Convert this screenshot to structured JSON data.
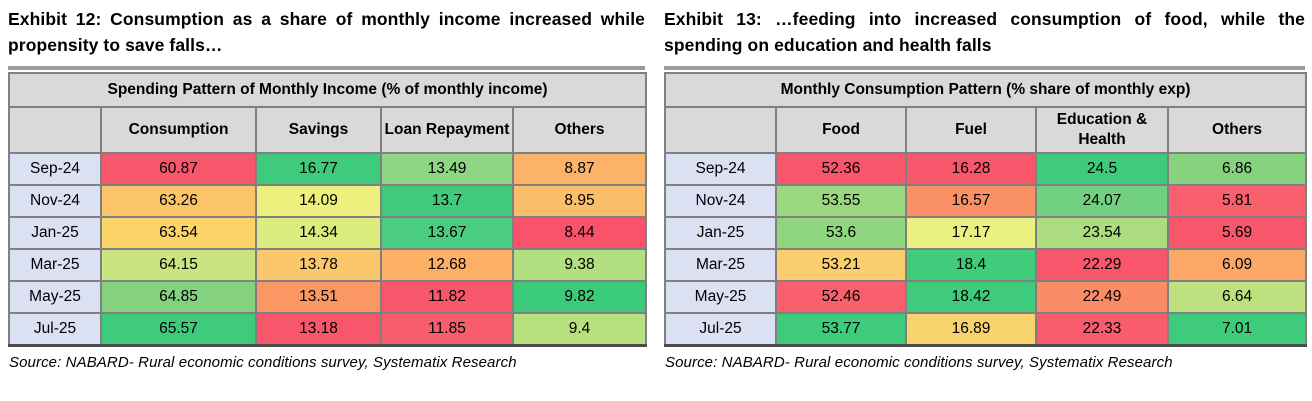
{
  "palette": {
    "header_fill": "#d9d9d9",
    "row_label_fill": "#dce0f3",
    "grid_border": "#808080",
    "top_band": "#9c9c9c",
    "heat_scale": {
      "low": "#f8566b",
      "mid": "#f5f47e",
      "high": "#3ecb7b"
    }
  },
  "exhibits": [
    {
      "title": "Exhibit 12: Consumption as a share of monthly income increased while propensity to save falls…",
      "table_title": "Spending Pattern of Monthly Income (% of monthly income)",
      "columns": [
        "",
        "Consumption",
        "Savings",
        "Loan Repayment",
        "Others"
      ],
      "rows": [
        {
          "label": "Sep-24",
          "cells": [
            {
              "v": "60.87",
              "c": "#f8566b"
            },
            {
              "v": "16.77",
              "c": "#3ecb7b"
            },
            {
              "v": "13.49",
              "c": "#8ed584"
            },
            {
              "v": "8.87",
              "c": "#fbb269"
            }
          ]
        },
        {
          "label": "Nov-24",
          "cells": [
            {
              "v": "63.26",
              "c": "#fbc468"
            },
            {
              "v": "14.09",
              "c": "#eef07e"
            },
            {
              "v": "13.7",
              "c": "#41c97c"
            },
            {
              "v": "8.95",
              "c": "#fbbf6b"
            }
          ]
        },
        {
          "label": "Jan-25",
          "cells": [
            {
              "v": "63.54",
              "c": "#fbd468"
            },
            {
              "v": "14.34",
              "c": "#dcec7e"
            },
            {
              "v": "13.67",
              "c": "#4acd7e"
            },
            {
              "v": "8.44",
              "c": "#f8536a"
            }
          ]
        },
        {
          "label": "Mar-25",
          "cells": [
            {
              "v": "64.15",
              "c": "#c9e481"
            },
            {
              "v": "13.78",
              "c": "#fbc76d"
            },
            {
              "v": "12.68",
              "c": "#fbb066"
            },
            {
              "v": "9.38",
              "c": "#b2df7f"
            }
          ]
        },
        {
          "label": "May-25",
          "cells": [
            {
              "v": "64.85",
              "c": "#84d280"
            },
            {
              "v": "13.51",
              "c": "#fa9763"
            },
            {
              "v": "11.82",
              "c": "#f8566b"
            },
            {
              "v": "9.82",
              "c": "#3bca79"
            }
          ]
        },
        {
          "label": "Jul-25",
          "cells": [
            {
              "v": "65.57",
              "c": "#3ecb7b"
            },
            {
              "v": "13.18",
              "c": "#f8566b"
            },
            {
              "v": "11.85",
              "c": "#f85d6e"
            },
            {
              "v": "9.4",
              "c": "#b8e07e"
            }
          ]
        }
      ],
      "source": "Source: NABARD- Rural economic conditions survey, Systematix Research"
    },
    {
      "title": "Exhibit 13: …feeding into increased consumption of food, while the spending on education and health falls",
      "table_title": "Monthly Consumption Pattern (% share of monthly exp)",
      "columns": [
        "",
        "Food",
        "Fuel",
        "Education & Health",
        "Others"
      ],
      "rows": [
        {
          "label": "Sep-24",
          "cells": [
            {
              "v": "52.36",
              "c": "#f8566b"
            },
            {
              "v": "16.28",
              "c": "#f8566b"
            },
            {
              "v": "24.5",
              "c": "#3ecb7b"
            },
            {
              "v": "6.86",
              "c": "#86d27f"
            }
          ]
        },
        {
          "label": "Nov-24",
          "cells": [
            {
              "v": "53.55",
              "c": "#9ad77f"
            },
            {
              "v": "16.57",
              "c": "#fa9165"
            },
            {
              "v": "24.07",
              "c": "#72d181"
            },
            {
              "v": "5.81",
              "c": "#f95f6d"
            }
          ]
        },
        {
          "label": "Jan-25",
          "cells": [
            {
              "v": "53.6",
              "c": "#90d580"
            },
            {
              "v": "17.17",
              "c": "#ebf180"
            },
            {
              "v": "23.54",
              "c": "#abdd80"
            },
            {
              "v": "5.69",
              "c": "#f8566b"
            }
          ]
        },
        {
          "label": "Mar-25",
          "cells": [
            {
              "v": "53.21",
              "c": "#fbce6e"
            },
            {
              "v": "18.4",
              "c": "#41cc7c"
            },
            {
              "v": "22.29",
              "c": "#f8566b"
            },
            {
              "v": "6.09",
              "c": "#fba767"
            }
          ]
        },
        {
          "label": "May-25",
          "cells": [
            {
              "v": "52.46",
              "c": "#f95f6d"
            },
            {
              "v": "18.42",
              "c": "#3ecb7b"
            },
            {
              "v": "22.49",
              "c": "#fa8c66"
            },
            {
              "v": "6.64",
              "c": "#bde17f"
            }
          ]
        },
        {
          "label": "Jul-25",
          "cells": [
            {
              "v": "53.77",
              "c": "#3ecb7b"
            },
            {
              "v": "16.89",
              "c": "#f9d36e"
            },
            {
              "v": "22.33",
              "c": "#f95c6c"
            },
            {
              "v": "7.01",
              "c": "#3ecb7b"
            }
          ]
        }
      ],
      "source": "Source: NABARD- Rural economic conditions survey, Systematix Research"
    }
  ],
  "chart_data": [
    {
      "type": "heatmap",
      "title": "Spending Pattern of Monthly Income (% of monthly income)",
      "categories": [
        "Sep-24",
        "Nov-24",
        "Jan-25",
        "Mar-25",
        "May-25",
        "Jul-25"
      ],
      "series": [
        {
          "name": "Consumption",
          "values": [
            60.87,
            63.26,
            63.54,
            64.15,
            64.85,
            65.57
          ]
        },
        {
          "name": "Savings",
          "values": [
            16.77,
            14.09,
            14.34,
            13.78,
            13.51,
            13.18
          ]
        },
        {
          "name": "Loan Repayment",
          "values": [
            13.49,
            13.7,
            13.67,
            12.68,
            11.82,
            11.85
          ]
        },
        {
          "name": "Others",
          "values": [
            8.87,
            8.95,
            8.44,
            9.38,
            9.82,
            9.4
          ]
        }
      ],
      "legend_position": "none",
      "color_scale": "red-yellow-green per column (low to high)"
    },
    {
      "type": "heatmap",
      "title": "Monthly Consumption Pattern (% share of monthly exp)",
      "categories": [
        "Sep-24",
        "Nov-24",
        "Jan-25",
        "Mar-25",
        "May-25",
        "Jul-25"
      ],
      "series": [
        {
          "name": "Food",
          "values": [
            52.36,
            53.55,
            53.6,
            53.21,
            52.46,
            53.77
          ]
        },
        {
          "name": "Fuel",
          "values": [
            16.28,
            16.57,
            17.17,
            18.4,
            18.42,
            16.89
          ]
        },
        {
          "name": "Education & Health",
          "values": [
            24.5,
            24.07,
            23.54,
            22.29,
            22.49,
            22.33
          ]
        },
        {
          "name": "Others",
          "values": [
            6.86,
            5.81,
            5.69,
            6.09,
            6.64,
            7.01
          ]
        }
      ],
      "legend_position": "none",
      "color_scale": "red-yellow-green per column (low to high)"
    }
  ]
}
